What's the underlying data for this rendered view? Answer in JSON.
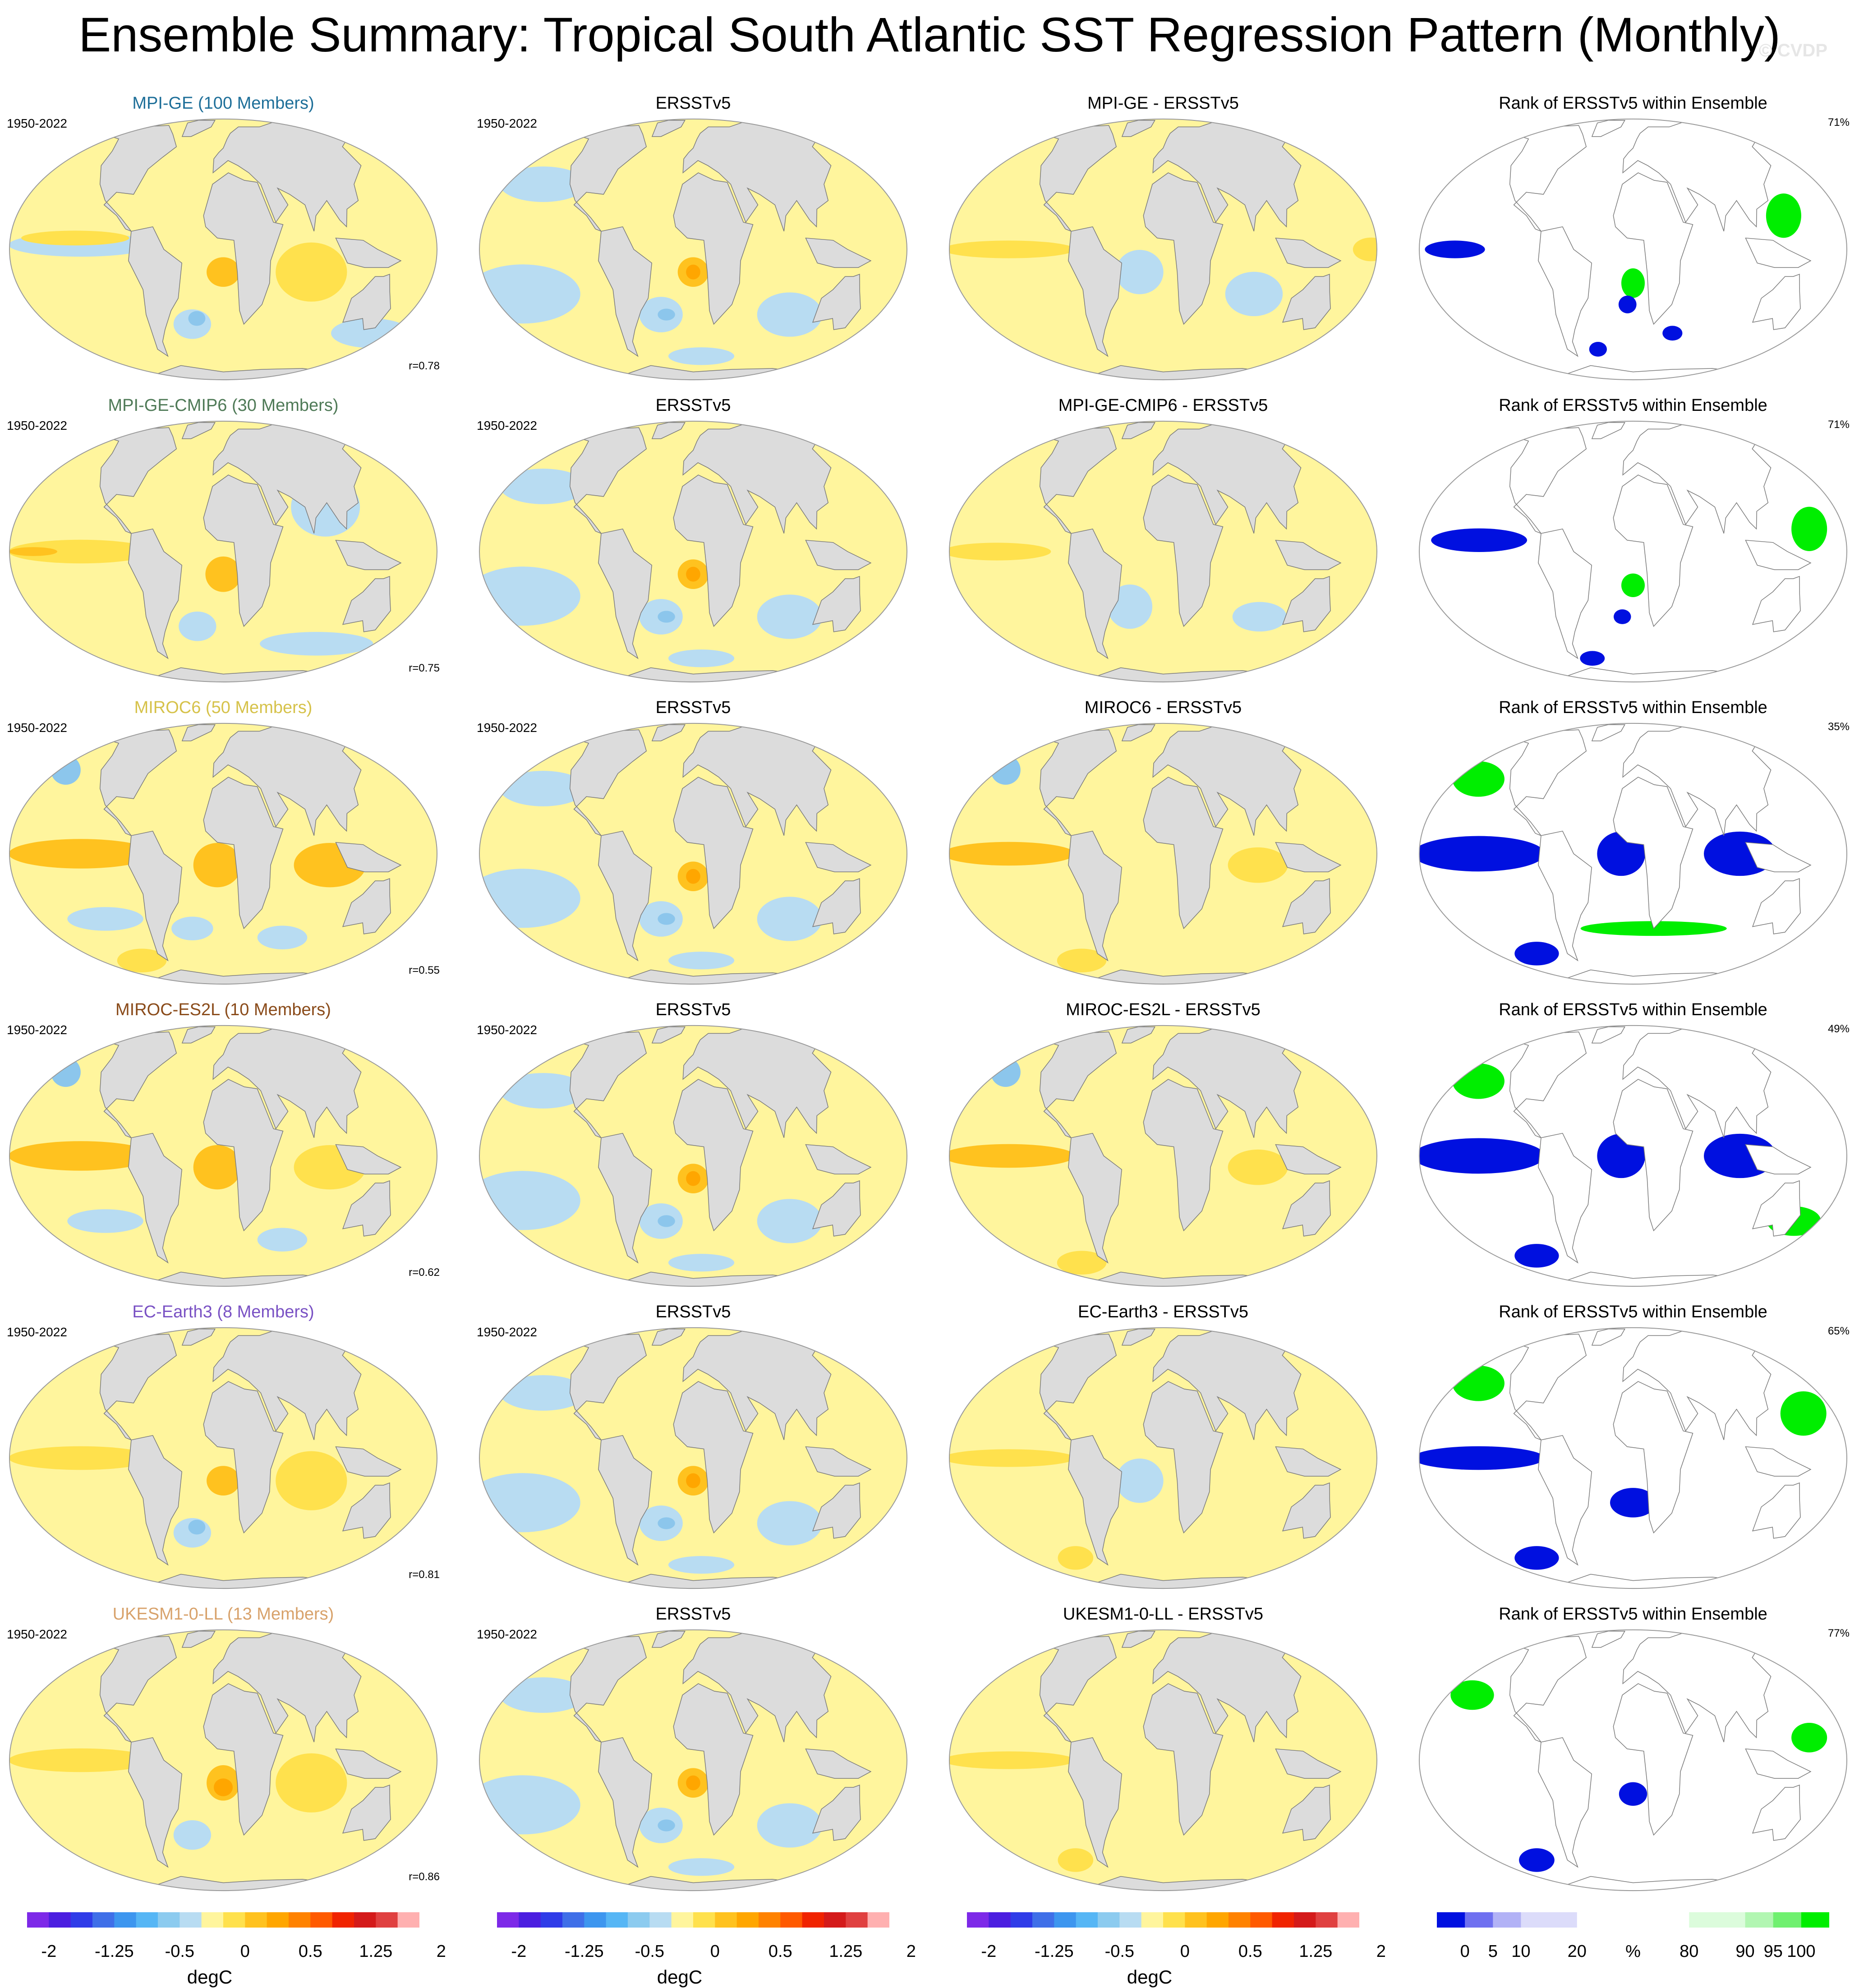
{
  "title": "Ensemble Summary: Tropical South Atlantic SST Regression Pattern (Monthly)",
  "watermark": "© CVDP",
  "colors": {
    "ocean_map": "#fff59d",
    "ocean_rank": "#ffffff",
    "land": "#dcdcdc",
    "coast": "#7a7a7a",
    "neg1": "#b8dcf2",
    "neg2": "#8cc6ec",
    "pos1": "#ffe14d",
    "pos2": "#ffc21f",
    "pos3": "#ffa600",
    "rank_low": "#0010e0",
    "rank_high": "#00ee00"
  },
  "rows": [
    {
      "model": "MPI-GE (100 Members)",
      "model_color": "#1e6f99",
      "period": "1950-2022",
      "corr": "r=0.78",
      "diff_title": "MPI-GE - ERSSTv5",
      "rank_pct": "71%",
      "model_blobs": [
        {
          "kind": "neg1",
          "lon": -120,
          "lat": 2,
          "rx": 60,
          "ry": 8
        },
        {
          "kind": "pos1",
          "lon": -125,
          "lat": 5,
          "rx": 45,
          "ry": 5
        },
        {
          "kind": "pos2",
          "lon": 0,
          "lat": -10,
          "rx": 14,
          "ry": 10
        },
        {
          "kind": "neg1",
          "lon": -30,
          "lat": -35,
          "rx": 18,
          "ry": 10
        },
        {
          "kind": "neg2",
          "lon": -25,
          "lat": -32,
          "rx": 8,
          "ry": 5
        },
        {
          "kind": "pos1",
          "lon": 75,
          "lat": -10,
          "rx": 30,
          "ry": 20
        },
        {
          "kind": "neg1",
          "lon": 150,
          "lat": -40,
          "rx": 40,
          "ry": 10
        }
      ],
      "diff_blobs": [
        {
          "kind": "pos1",
          "lon": -130,
          "lat": 0,
          "rx": 55,
          "ry": 6
        },
        {
          "kind": "neg1",
          "lon": -20,
          "lat": -10,
          "rx": 20,
          "ry": 15
        },
        {
          "kind": "neg1",
          "lon": 80,
          "lat": -20,
          "rx": 25,
          "ry": 15
        },
        {
          "kind": "pos1",
          "lon": 175,
          "lat": 0,
          "rx": 15,
          "ry": 8
        }
      ],
      "rank_blobs": [
        {
          "kind": "rank_low",
          "lon": -150,
          "lat": 0,
          "rx": 25,
          "ry": 6
        },
        {
          "kind": "rank_high",
          "lon": 0,
          "lat": -15,
          "rx": 10,
          "ry": 10
        },
        {
          "kind": "rank_low",
          "lon": -5,
          "lat": -25,
          "rx": 8,
          "ry": 6
        },
        {
          "kind": "rank_low",
          "lon": -40,
          "lat": -50,
          "rx": 10,
          "ry": 5
        },
        {
          "kind": "rank_low",
          "lon": 40,
          "lat": -40,
          "rx": 10,
          "ry": 5
        },
        {
          "kind": "rank_high",
          "lon": 130,
          "lat": 15,
          "rx": 15,
          "ry": 15
        }
      ]
    },
    {
      "model": "MPI-GE-CMIP6 (30 Members)",
      "model_color": "#4f7a57",
      "period": "1950-2022",
      "corr": "r=0.75",
      "diff_title": "MPI-GE-CMIP6 - ERSSTv5",
      "rank_pct": "71%",
      "model_blobs": [
        {
          "kind": "pos1",
          "lon": -120,
          "lat": 0,
          "rx": 60,
          "ry": 8
        },
        {
          "kind": "pos2",
          "lon": -160,
          "lat": 0,
          "rx": 20,
          "ry": 3
        },
        {
          "kind": "pos2",
          "lon": 0,
          "lat": -10,
          "rx": 15,
          "ry": 12
        },
        {
          "kind": "neg1",
          "lon": -25,
          "lat": -35,
          "rx": 18,
          "ry": 10
        },
        {
          "kind": "neg1",
          "lon": 90,
          "lat": 20,
          "rx": 30,
          "ry": 20
        },
        {
          "kind": "neg1",
          "lon": 100,
          "lat": -45,
          "rx": 60,
          "ry": 8
        }
      ],
      "diff_blobs": [
        {
          "kind": "pos1",
          "lon": -140,
          "lat": 0,
          "rx": 45,
          "ry": 6
        },
        {
          "kind": "neg1",
          "lon": -30,
          "lat": -25,
          "rx": 20,
          "ry": 15
        },
        {
          "kind": "neg1",
          "lon": 90,
          "lat": -30,
          "rx": 25,
          "ry": 10
        }
      ],
      "rank_blobs": [
        {
          "kind": "rank_low",
          "lon": -130,
          "lat": 5,
          "rx": 40,
          "ry": 8
        },
        {
          "kind": "rank_high",
          "lon": 0,
          "lat": -15,
          "rx": 10,
          "ry": 8
        },
        {
          "kind": "rank_low",
          "lon": -10,
          "lat": -30,
          "rx": 8,
          "ry": 5
        },
        {
          "kind": "rank_low",
          "lon": -50,
          "lat": -55,
          "rx": 15,
          "ry": 5
        },
        {
          "kind": "rank_high",
          "lon": 150,
          "lat": 10,
          "rx": 15,
          "ry": 15
        }
      ]
    },
    {
      "model": "MIROC6 (50 Members)",
      "model_color": "#d6c24a",
      "period": "1950-2022",
      "corr": "r=0.55",
      "diff_title": "MIROC6 - ERSSTv5",
      "rank_pct": "35%",
      "model_blobs": [
        {
          "kind": "pos2",
          "lon": -120,
          "lat": 0,
          "rx": 60,
          "ry": 10
        },
        {
          "kind": "pos2",
          "lon": -5,
          "lat": -5,
          "rx": 20,
          "ry": 15
        },
        {
          "kind": "pos2",
          "lon": 90,
          "lat": -5,
          "rx": 30,
          "ry": 15
        },
        {
          "kind": "neg2",
          "lon": -160,
          "lat": 40,
          "rx": 15,
          "ry": 10
        },
        {
          "kind": "neg1",
          "lon": -110,
          "lat": -30,
          "rx": 35,
          "ry": 8
        },
        {
          "kind": "neg1",
          "lon": -30,
          "lat": -35,
          "rx": 20,
          "ry": 8
        },
        {
          "kind": "neg1",
          "lon": 60,
          "lat": -40,
          "rx": 25,
          "ry": 8
        },
        {
          "kind": "pos1",
          "lon": -100,
          "lat": -55,
          "rx": 30,
          "ry": 8
        }
      ],
      "diff_blobs": [
        {
          "kind": "pos2",
          "lon": -130,
          "lat": 0,
          "rx": 55,
          "ry": 8
        },
        {
          "kind": "neg2",
          "lon": -160,
          "lat": 40,
          "rx": 15,
          "ry": 10
        },
        {
          "kind": "pos1",
          "lon": 80,
          "lat": -5,
          "rx": 25,
          "ry": 12
        },
        {
          "kind": "pos1",
          "lon": -100,
          "lat": -55,
          "rx": 30,
          "ry": 8
        }
      ],
      "rank_blobs": [
        {
          "kind": "rank_low",
          "lon": -130,
          "lat": 0,
          "rx": 55,
          "ry": 12
        },
        {
          "kind": "rank_low",
          "lon": -10,
          "lat": 0,
          "rx": 20,
          "ry": 15
        },
        {
          "kind": "rank_low",
          "lon": 90,
          "lat": 0,
          "rx": 30,
          "ry": 15
        },
        {
          "kind": "rank_high",
          "lon": -150,
          "lat": 35,
          "rx": 25,
          "ry": 12
        },
        {
          "kind": "rank_high",
          "lon": 20,
          "lat": -35,
          "rx": 70,
          "ry": 5
        },
        {
          "kind": "rank_low",
          "lon": -110,
          "lat": -50,
          "rx": 25,
          "ry": 8
        }
      ]
    },
    {
      "model": "MIROC-ES2L (10 Members)",
      "model_color": "#8a4b1a",
      "period": "1950-2022",
      "corr": "r=0.62",
      "diff_title": "MIROC-ES2L - ERSSTv5",
      "rank_pct": "49%",
      "model_blobs": [
        {
          "kind": "pos2",
          "lon": -120,
          "lat": 0,
          "rx": 60,
          "ry": 10
        },
        {
          "kind": "pos2",
          "lon": -5,
          "lat": -5,
          "rx": 20,
          "ry": 15
        },
        {
          "kind": "pos1",
          "lon": 90,
          "lat": -5,
          "rx": 30,
          "ry": 15
        },
        {
          "kind": "neg2",
          "lon": -160,
          "lat": 40,
          "rx": 15,
          "ry": 10
        },
        {
          "kind": "neg1",
          "lon": -110,
          "lat": -30,
          "rx": 35,
          "ry": 8
        },
        {
          "kind": "neg1",
          "lon": 60,
          "lat": -40,
          "rx": 25,
          "ry": 8
        }
      ],
      "diff_blobs": [
        {
          "kind": "pos2",
          "lon": -130,
          "lat": 0,
          "rx": 55,
          "ry": 8
        },
        {
          "kind": "neg2",
          "lon": -160,
          "lat": 40,
          "rx": 15,
          "ry": 10
        },
        {
          "kind": "pos1",
          "lon": 80,
          "lat": -5,
          "rx": 25,
          "ry": 12
        },
        {
          "kind": "pos1",
          "lon": -100,
          "lat": -55,
          "rx": 30,
          "ry": 8
        }
      ],
      "rank_blobs": [
        {
          "kind": "rank_low",
          "lon": -130,
          "lat": 0,
          "rx": 55,
          "ry": 12
        },
        {
          "kind": "rank_low",
          "lon": -10,
          "lat": 0,
          "rx": 20,
          "ry": 15
        },
        {
          "kind": "rank_low",
          "lon": 90,
          "lat": 0,
          "rx": 30,
          "ry": 15
        },
        {
          "kind": "rank_high",
          "lon": -150,
          "lat": 35,
          "rx": 25,
          "ry": 12
        },
        {
          "kind": "rank_high",
          "lon": 150,
          "lat": -30,
          "rx": 25,
          "ry": 10
        },
        {
          "kind": "rank_low",
          "lon": -110,
          "lat": -50,
          "rx": 25,
          "ry": 8
        }
      ]
    },
    {
      "model": "EC-Earth3 (8 Members)",
      "model_color": "#7a52c4",
      "period": "1950-2022",
      "corr": "r=0.81",
      "diff_title": "EC-Earth3 - ERSSTv5",
      "rank_pct": "65%",
      "model_blobs": [
        {
          "kind": "pos1",
          "lon": -120,
          "lat": 0,
          "rx": 60,
          "ry": 8
        },
        {
          "kind": "pos2",
          "lon": 0,
          "lat": -10,
          "rx": 14,
          "ry": 10
        },
        {
          "kind": "neg1",
          "lon": -30,
          "lat": -35,
          "rx": 18,
          "ry": 10
        },
        {
          "kind": "neg2",
          "lon": -25,
          "lat": -32,
          "rx": 8,
          "ry": 5
        },
        {
          "kind": "pos1",
          "lon": 75,
          "lat": -10,
          "rx": 30,
          "ry": 20
        }
      ],
      "diff_blobs": [
        {
          "kind": "pos1",
          "lon": -130,
          "lat": 0,
          "rx": 55,
          "ry": 6
        },
        {
          "kind": "neg1",
          "lon": -20,
          "lat": -10,
          "rx": 20,
          "ry": 15
        },
        {
          "kind": "pos1",
          "lon": -100,
          "lat": -50,
          "rx": 20,
          "ry": 8
        }
      ],
      "rank_blobs": [
        {
          "kind": "rank_low",
          "lon": -130,
          "lat": 0,
          "rx": 55,
          "ry": 8
        },
        {
          "kind": "rank_low",
          "lon": -110,
          "lat": -50,
          "rx": 25,
          "ry": 8
        },
        {
          "kind": "rank_low",
          "lon": 0,
          "lat": -20,
          "rx": 20,
          "ry": 10
        },
        {
          "kind": "rank_high",
          "lon": -150,
          "lat": 35,
          "rx": 25,
          "ry": 12
        },
        {
          "kind": "rank_high",
          "lon": 150,
          "lat": 20,
          "rx": 20,
          "ry": 15
        }
      ]
    },
    {
      "model": "UKESM1-0-LL (13 Members)",
      "model_color": "#d8a26b",
      "period": "1950-2022",
      "corr": "r=0.86",
      "diff_title": "UKESM1-0-LL - ERSSTv5",
      "rank_pct": "77%",
      "model_blobs": [
        {
          "kind": "pos1",
          "lon": -120,
          "lat": 0,
          "rx": 60,
          "ry": 8
        },
        {
          "kind": "pos2",
          "lon": 0,
          "lat": -10,
          "rx": 14,
          "ry": 12
        },
        {
          "kind": "pos3",
          "lon": 0,
          "lat": -12,
          "rx": 8,
          "ry": 6
        },
        {
          "kind": "neg1",
          "lon": -30,
          "lat": -35,
          "rx": 18,
          "ry": 10
        },
        {
          "kind": "pos1",
          "lon": 75,
          "lat": -10,
          "rx": 30,
          "ry": 20
        }
      ],
      "diff_blobs": [
        {
          "kind": "pos1",
          "lon": -130,
          "lat": 0,
          "rx": 55,
          "ry": 6
        },
        {
          "kind": "pos1",
          "lon": -100,
          "lat": -50,
          "rx": 20,
          "ry": 8
        }
      ],
      "rank_blobs": [
        {
          "kind": "rank_low",
          "lon": -110,
          "lat": -50,
          "rx": 20,
          "ry": 8
        },
        {
          "kind": "rank_low",
          "lon": 0,
          "lat": -15,
          "rx": 12,
          "ry": 8
        },
        {
          "kind": "rank_high",
          "lon": -150,
          "lat": 30,
          "rx": 20,
          "ry": 10
        },
        {
          "kind": "rank_high",
          "lon": 150,
          "lat": 10,
          "rx": 15,
          "ry": 10
        }
      ]
    }
  ],
  "obs": {
    "title": "ERSSTv5",
    "blobs": [
      {
        "kind": "neg1",
        "lon": -150,
        "lat": -20,
        "rx": 50,
        "ry": 20
      },
      {
        "kind": "neg1",
        "lon": -140,
        "lat": 30,
        "rx": 40,
        "ry": 12
      },
      {
        "kind": "pos2",
        "lon": 0,
        "lat": -10,
        "rx": 13,
        "ry": 10
      },
      {
        "kind": "pos3",
        "lon": 0,
        "lat": -10,
        "rx": 6,
        "ry": 5
      },
      {
        "kind": "neg1",
        "lon": -30,
        "lat": -30,
        "rx": 20,
        "ry": 12
      },
      {
        "kind": "neg2",
        "lon": -25,
        "lat": -30,
        "rx": 8,
        "ry": 4
      },
      {
        "kind": "neg1",
        "lon": 90,
        "lat": -30,
        "rx": 30,
        "ry": 15
      },
      {
        "kind": "neg1",
        "lon": 10,
        "lat": -55,
        "rx": 40,
        "ry": 6
      }
    ]
  },
  "rank_title": "Rank of ERSSTv5 within Ensemble",
  "sst_colorbar": {
    "colors": [
      "#7d29e8",
      "#4b1ee0",
      "#2f3ce8",
      "#3f6fe8",
      "#3d96ef",
      "#56b6f5",
      "#8ccbef",
      "#b8dcf2",
      "#fff59d",
      "#ffe14d",
      "#ffc21f",
      "#ffa600",
      "#ff8200",
      "#ff5a00",
      "#f02300",
      "#d41a1a",
      "#e04040",
      "#ffb0b0"
    ],
    "tick_labels": [
      "-2",
      "-1.25",
      "-0.5",
      "0",
      "0.5",
      "1.25",
      "2"
    ],
    "tick_positions": [
      1,
      4,
      7,
      10,
      13,
      16,
      19
    ],
    "unit": "degC"
  },
  "rank_colorbar": {
    "colors": [
      "#0010e0",
      "#6f70f0",
      "#b2b2f6",
      "#dcdcfa",
      "#ffffff",
      "#ffffff",
      "#dcfcdc",
      "#b2f6b2",
      "#6ff06f",
      "#00ee00"
    ],
    "widths": [
      1,
      1,
      1,
      2,
      2,
      2,
      2,
      1,
      1,
      1
    ],
    "tick_labels": [
      "0",
      "5",
      "10",
      "20",
      "%",
      "80",
      "90",
      "95",
      "100"
    ],
    "tick_positions": [
      1,
      2,
      3,
      5,
      7,
      9,
      11,
      12,
      13
    ],
    "unit": ""
  }
}
